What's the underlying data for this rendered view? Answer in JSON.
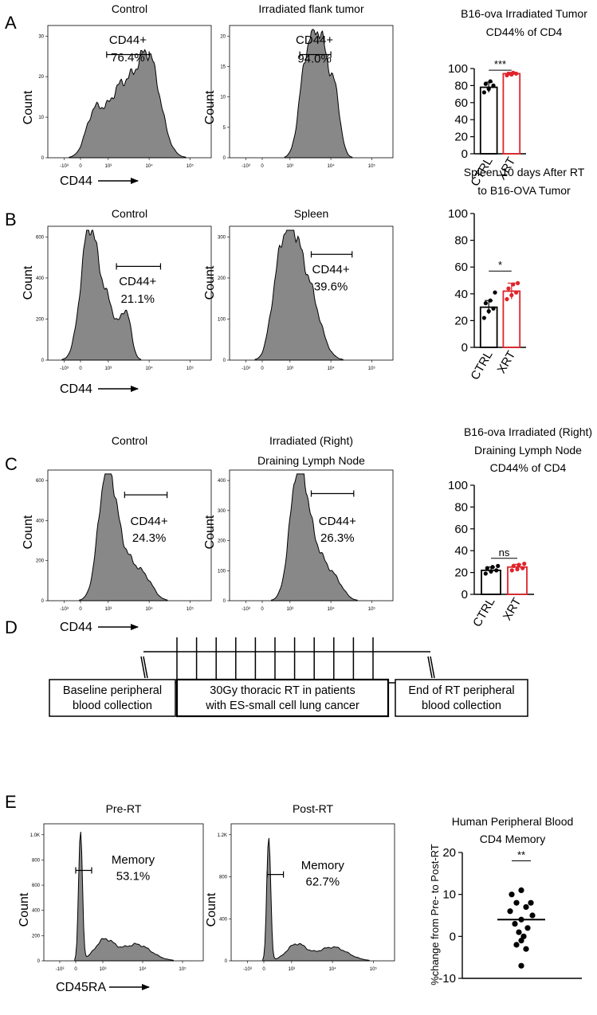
{
  "panel_letters": [
    "A",
    "B",
    "C",
    "D",
    "E"
  ],
  "histograms": [
    {
      "id": "A1",
      "title": [
        "Control"
      ],
      "yticks": [
        "0",
        "10",
        "20",
        "30"
      ],
      "xticks": [
        "-10³",
        "0",
        "10³",
        "10⁴",
        "10⁵"
      ],
      "gate_label": [
        "CD44+",
        "76.4%"
      ],
      "ylabel": "Count",
      "xlabel": "CD44",
      "arrow": true
    },
    {
      "id": "A2",
      "title": [
        "Irradiated flank tumor"
      ],
      "yticks": [
        "0",
        "5",
        "10",
        "15",
        "20"
      ],
      "xticks": [
        "-10³",
        "0",
        "10³",
        "10⁴",
        "10⁵"
      ],
      "gate_label": [
        "CD44+",
        "94.0%"
      ],
      "ylabel": "Count",
      "xlabel": "",
      "arrow": false
    },
    {
      "id": "B1",
      "title": [
        "Control"
      ],
      "yticks": [
        "0",
        "200",
        "400",
        "600"
      ],
      "xticks": [
        "-10³",
        "0",
        "10³",
        "10⁴",
        "10⁵"
      ],
      "gate_label": [
        "CD44+",
        "21.1%"
      ],
      "ylabel": "Count",
      "xlabel": "CD44",
      "arrow": true
    },
    {
      "id": "B2",
      "title": [
        "Spleen"
      ],
      "yticks": [
        "0",
        "100",
        "200",
        "300"
      ],
      "xticks": [
        "-10³",
        "0",
        "10³",
        "10⁴",
        "10⁵"
      ],
      "gate_label": [
        "CD44+",
        "39.6%"
      ],
      "ylabel": "Count",
      "xlabel": "",
      "arrow": false
    },
    {
      "id": "C1",
      "title": [
        "Control"
      ],
      "yticks": [
        "0",
        "200",
        "400",
        "600"
      ],
      "xticks": [
        "-10³",
        "0",
        "10³",
        "10⁴",
        "10⁵"
      ],
      "gate_label": [
        "CD44+",
        "24.3%"
      ],
      "ylabel": "Count",
      "xlabel": "CD44",
      "arrow": true
    },
    {
      "id": "C2",
      "title": [
        "Irradiated (Right)",
        "Draining Lymph Node"
      ],
      "yticks": [
        "0",
        "100",
        "200",
        "300",
        "400"
      ],
      "xticks": [
        "-10³",
        "0",
        "10³",
        "10⁴",
        "10⁵"
      ],
      "gate_label": [
        "CD44+",
        "26.3%"
      ],
      "ylabel": "Count",
      "xlabel": "",
      "arrow": false
    },
    {
      "id": "E1",
      "title": [
        "Pre-RT"
      ],
      "yticks": [
        "0",
        "200",
        "400",
        "600",
        "800",
        "1.0K"
      ],
      "xticks": [
        "-10³",
        "0",
        "10³",
        "10⁴",
        "10⁵"
      ],
      "gate_label": [
        "Memory",
        "53.1%"
      ],
      "ylabel": "Count",
      "xlabel": "CD45RA",
      "arrow": true
    },
    {
      "id": "E2",
      "title": [
        "Post-RT"
      ],
      "yticks": [
        "0",
        "400",
        "800",
        "1.2K"
      ],
      "xticks": [
        "-10³",
        "0",
        "10³",
        "10⁴",
        "10⁵"
      ],
      "gate_label": [
        "Memory",
        "62.7%"
      ],
      "ylabel": "Count",
      "xlabel": "",
      "arrow": false
    }
  ],
  "chart_data": [
    {
      "id": "A3",
      "type": "bar",
      "title": [
        "B16-ova Irradiated Tumor",
        "CD44% of CD4"
      ],
      "categories": [
        "CTRL",
        "XRT"
      ],
      "values": [
        78,
        94
      ],
      "errors": [
        6,
        1.5
      ],
      "points": [
        [
          72,
          76,
          80,
          82,
          85
        ],
        [
          92,
          93,
          94,
          94,
          95
        ]
      ],
      "colors": [
        "#000000",
        "#e0232b"
      ],
      "ylim": [
        0,
        100
      ],
      "yticks": [
        "0",
        "20",
        "40",
        "60",
        "80",
        "100"
      ],
      "significance": "***",
      "xlabel": "",
      "ylabel": ""
    },
    {
      "id": "B3",
      "type": "bar",
      "title": [
        "Spleen 10 days After RT",
        "to B16-OVA Tumor",
        "CD44% of CD4"
      ],
      "categories": [
        "CTRL",
        "XRT"
      ],
      "values": [
        30,
        42
      ],
      "errors": [
        5,
        6
      ],
      "points": [
        [
          22,
          27,
          29,
          33,
          35,
          41
        ],
        [
          36,
          39,
          41,
          44,
          47,
          48
        ]
      ],
      "colors": [
        "#000000",
        "#e0232b"
      ],
      "ylim": [
        0,
        100
      ],
      "yticks": [
        "0",
        "20",
        "40",
        "60",
        "80",
        "100"
      ],
      "significance": "*",
      "xlabel": "",
      "ylabel": ""
    },
    {
      "id": "C3",
      "type": "bar",
      "title": [
        "B16-ova Irradiated (Right)",
        "Draining Lymph Node",
        "CD44% of CD4"
      ],
      "categories": [
        "CTRL",
        "XRT"
      ],
      "values": [
        22,
        25
      ],
      "errors": [
        3,
        2.5
      ],
      "points": [
        [
          19,
          21,
          22,
          24,
          25,
          26
        ],
        [
          22,
          23,
          24,
          26,
          27,
          28
        ]
      ],
      "colors": [
        "#000000",
        "#e0232b"
      ],
      "ylim": [
        0,
        100
      ],
      "yticks": [
        "0",
        "20",
        "40",
        "60",
        "80",
        "100"
      ],
      "significance": "ns",
      "xlabel": "",
      "ylabel": ""
    },
    {
      "id": "E3",
      "type": "scatter",
      "title": [
        "Human Peripheral  Blood",
        "CD4  Memory"
      ],
      "ylabel": "%change from Pre- to Post-RT",
      "ylim": [
        -10,
        20
      ],
      "yticks": [
        "-10",
        "0",
        "10",
        "20"
      ],
      "values": [
        11,
        10,
        8,
        8,
        7,
        6,
        5,
        4,
        3,
        2,
        1,
        0,
        -1,
        -2,
        -3,
        -7
      ],
      "median": 4,
      "significance": "**",
      "xlabel": "",
      "categories": []
    }
  ],
  "timeline": {
    "boxes": [
      [
        "Baseline peripheral",
        "blood collection"
      ],
      [
        "30Gy thoracic RT in patients",
        "with ES-small cell lung cancer"
      ],
      [
        "End of RT peripheral",
        "blood collection"
      ]
    ]
  }
}
